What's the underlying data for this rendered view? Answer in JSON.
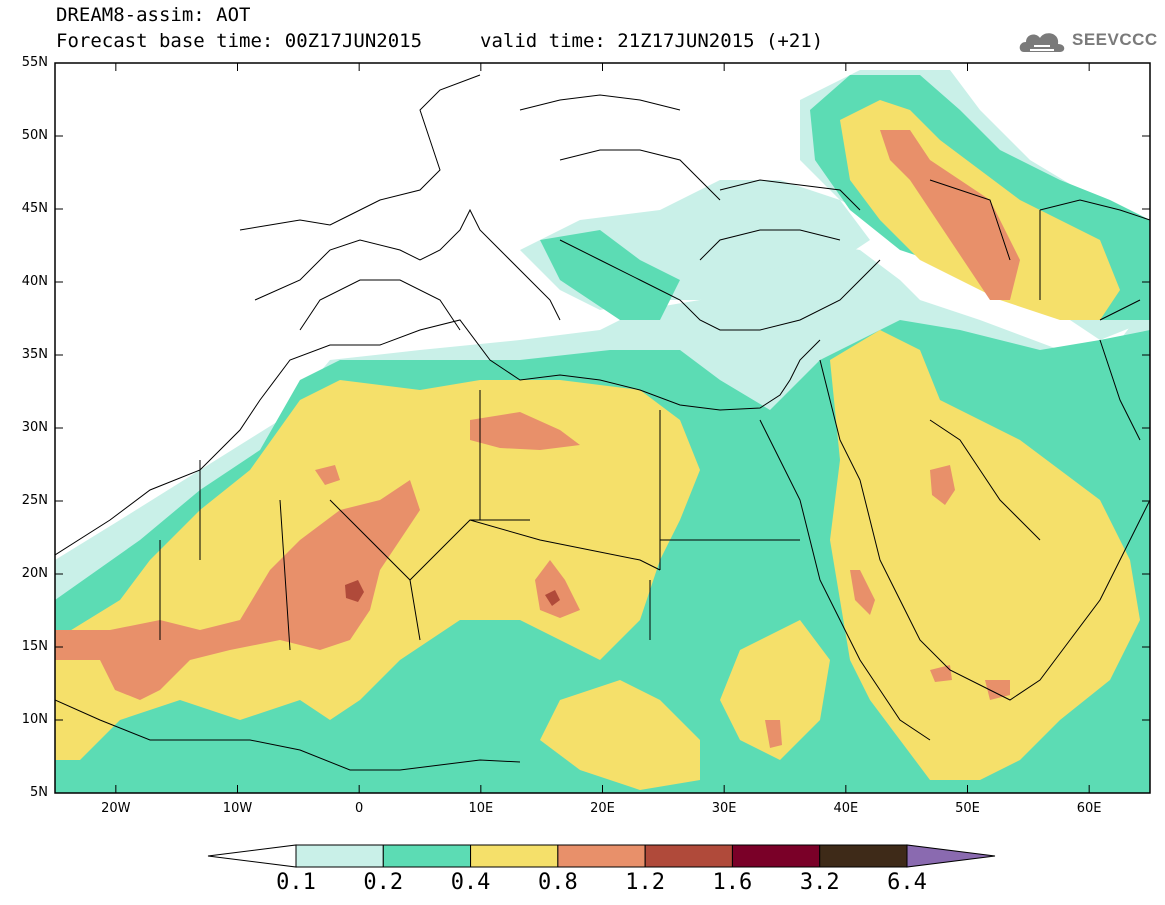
{
  "header": {
    "title_line1": "DREAM8-assim: AOT",
    "title_line2": "Forecast base time: 00Z17JUN2015",
    "valid_time": "valid time: 21Z17JUN2015 (+21)",
    "logo_text": "SEEVCCC",
    "logo_icon": "cloud-icon"
  },
  "map": {
    "variable": "AOT",
    "lat_range": [
      5,
      55
    ],
    "lon_range": [
      -25,
      65
    ],
    "lat_labels": [
      "55N",
      "50N",
      "45N",
      "40N",
      "35N",
      "30N",
      "25N",
      "20N",
      "15N",
      "10N",
      "5N"
    ],
    "lon_labels": [
      "20W",
      "10W",
      "0",
      "10E",
      "20E",
      "30E",
      "40E",
      "50E",
      "60E"
    ]
  },
  "colorbar": {
    "labels": [
      "0.1",
      "0.2",
      "0.4",
      "0.8",
      "1.2",
      "1.6",
      "3.2",
      "6.4"
    ],
    "colors": [
      "#ffffff",
      "#c9f0e8",
      "#5cdcb4",
      "#f5e06a",
      "#e8906a",
      "#b04a3a",
      "#7a0028",
      "#3e2a18",
      "#8a6ab0"
    ]
  },
  "palette": {
    "land_line": "#000000",
    "background": "#ffffff"
  }
}
